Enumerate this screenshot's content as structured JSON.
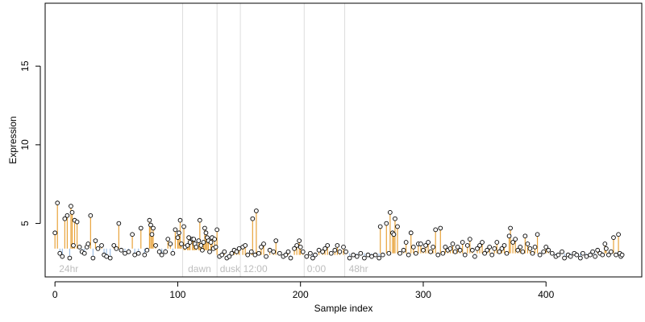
{
  "chart_data": {
    "type": "scatter",
    "title": "",
    "xlabel": "Sample index",
    "ylabel": "Expression",
    "xlim": [
      -8,
      478
    ],
    "ylim": [
      1.6,
      19.0
    ],
    "xticks": [
      0,
      100,
      200,
      300,
      400
    ],
    "yticks": [
      5,
      10,
      15
    ],
    "grid": false,
    "colors": {
      "point_fill": "#ffffff",
      "point_stroke": "#000000",
      "stem_high": "#e8a33a",
      "stem_low": "#9dbfe6",
      "separator": "#dddddd",
      "segment_label": "#bdbdbd"
    },
    "segment_boundaries": [
      104,
      132,
      151,
      203,
      236
    ],
    "segment_labels": [
      {
        "text": "24hr",
        "x": 2
      },
      {
        "text": "dawn",
        "x": 107
      },
      {
        "text": "dusk",
        "x": 133
      },
      {
        "text": "12:00",
        "x": 152
      },
      {
        "text": "0:00",
        "x": 204
      },
      {
        "text": "48hr",
        "x": 238
      }
    ],
    "baseline_segments": [
      {
        "x0": 0,
        "x1": 104,
        "value": 3.4
      },
      {
        "x0": 104,
        "x1": 132,
        "value": 3.3
      },
      {
        "x0": 132,
        "x1": 151,
        "value": 3.0
      },
      {
        "x0": 151,
        "x1": 203,
        "value": 3.0
      },
      {
        "x0": 203,
        "x1": 236,
        "value": 3.0
      },
      {
        "x0": 236,
        "x1": 462,
        "value": 3.1
      }
    ],
    "points": [
      [
        0,
        4.4
      ],
      [
        2,
        6.3
      ],
      [
        4,
        3.1
      ],
      [
        6,
        2.9
      ],
      [
        8,
        5.3
      ],
      [
        10,
        5.5
      ],
      [
        12,
        2.8
      ],
      [
        13,
        6.1
      ],
      [
        14,
        5.7
      ],
      [
        15,
        3.6
      ],
      [
        16,
        5.2
      ],
      [
        18,
        5.1
      ],
      [
        20,
        3.5
      ],
      [
        22,
        3.2
      ],
      [
        24,
        3.1
      ],
      [
        26,
        3.5
      ],
      [
        27,
        3.7
      ],
      [
        29,
        5.5
      ],
      [
        31,
        2.8
      ],
      [
        33,
        3.9
      ],
      [
        35,
        3.4
      ],
      [
        38,
        3.6
      ],
      [
        40,
        3.0
      ],
      [
        42,
        2.9
      ],
      [
        45,
        2.8
      ],
      [
        48,
        3.6
      ],
      [
        50,
        3.4
      ],
      [
        52,
        5.0
      ],
      [
        54,
        3.3
      ],
      [
        57,
        3.1
      ],
      [
        60,
        3.2
      ],
      [
        63,
        4.3
      ],
      [
        65,
        3.0
      ],
      [
        68,
        3.1
      ],
      [
        70,
        4.7
      ],
      [
        73,
        3.0
      ],
      [
        75,
        3.3
      ],
      [
        77,
        5.2
      ],
      [
        78,
        4.9
      ],
      [
        79,
        4.3
      ],
      [
        80,
        4.7
      ],
      [
        82,
        3.6
      ],
      [
        85,
        3.2
      ],
      [
        87,
        3.0
      ],
      [
        90,
        3.2
      ],
      [
        92,
        4.0
      ],
      [
        94,
        3.7
      ],
      [
        96,
        3.1
      ],
      [
        98,
        4.6
      ],
      [
        100,
        4.1
      ],
      [
        101,
        4.4
      ],
      [
        102,
        5.2
      ],
      [
        103,
        3.7
      ],
      [
        105,
        4.8
      ],
      [
        106,
        3.5
      ],
      [
        108,
        3.6
      ],
      [
        109,
        4.1
      ],
      [
        110,
        3.8
      ],
      [
        112,
        4.0
      ],
      [
        113,
        4.0
      ],
      [
        114,
        3.7
      ],
      [
        115,
        3.5
      ],
      [
        117,
        3.9
      ],
      [
        118,
        5.2
      ],
      [
        119,
        3.6
      ],
      [
        120,
        3.3
      ],
      [
        121,
        3.8
      ],
      [
        122,
        4.7
      ],
      [
        123,
        4.4
      ],
      [
        124,
        4.1
      ],
      [
        125,
        3.9
      ],
      [
        126,
        3.2
      ],
      [
        127,
        3.8
      ],
      [
        128,
        4.1
      ],
      [
        129,
        3.4
      ],
      [
        130,
        4.0
      ],
      [
        131,
        3.5
      ],
      [
        132,
        4.6
      ],
      [
        134,
        2.9
      ],
      [
        136,
        3.0
      ],
      [
        138,
        3.2
      ],
      [
        140,
        2.8
      ],
      [
        142,
        2.9
      ],
      [
        144,
        3.1
      ],
      [
        146,
        3.3
      ],
      [
        148,
        3.2
      ],
      [
        150,
        3.4
      ],
      [
        153,
        3.5
      ],
      [
        155,
        3.6
      ],
      [
        157,
        3.0
      ],
      [
        160,
        3.2
      ],
      [
        161,
        5.3
      ],
      [
        163,
        3.0
      ],
      [
        164,
        5.8
      ],
      [
        166,
        3.1
      ],
      [
        168,
        3.5
      ],
      [
        170,
        3.7
      ],
      [
        172,
        2.9
      ],
      [
        175,
        3.3
      ],
      [
        178,
        3.2
      ],
      [
        180,
        3.9
      ],
      [
        183,
        3.1
      ],
      [
        186,
        2.9
      ],
      [
        188,
        3.0
      ],
      [
        190,
        3.2
      ],
      [
        192,
        2.8
      ],
      [
        195,
        3.4
      ],
      [
        197,
        3.6
      ],
      [
        199,
        3.9
      ],
      [
        200,
        3.5
      ],
      [
        202,
        3.2
      ],
      [
        205,
        2.9
      ],
      [
        208,
        3.1
      ],
      [
        210,
        2.8
      ],
      [
        212,
        3.0
      ],
      [
        215,
        3.3
      ],
      [
        218,
        3.2
      ],
      [
        220,
        3.4
      ],
      [
        222,
        3.6
      ],
      [
        225,
        3.1
      ],
      [
        228,
        3.3
      ],
      [
        230,
        3.6
      ],
      [
        232,
        3.2
      ],
      [
        235,
        3.5
      ],
      [
        237,
        3.2
      ],
      [
        240,
        2.8
      ],
      [
        243,
        3.0
      ],
      [
        246,
        2.9
      ],
      [
        249,
        3.1
      ],
      [
        252,
        2.8
      ],
      [
        255,
        3.0
      ],
      [
        258,
        2.9
      ],
      [
        261,
        3.0
      ],
      [
        264,
        2.8
      ],
      [
        265,
        4.8
      ],
      [
        267,
        3.0
      ],
      [
        270,
        5.0
      ],
      [
        272,
        3.1
      ],
      [
        273,
        5.7
      ],
      [
        275,
        4.4
      ],
      [
        276,
        4.3
      ],
      [
        277,
        5.3
      ],
      [
        279,
        4.8
      ],
      [
        281,
        3.1
      ],
      [
        284,
        3.3
      ],
      [
        286,
        3.8
      ],
      [
        288,
        3.0
      ],
      [
        290,
        4.4
      ],
      [
        292,
        3.5
      ],
      [
        294,
        3.1
      ],
      [
        296,
        3.7
      ],
      [
        298,
        3.7
      ],
      [
        300,
        3.3
      ],
      [
        302,
        3.6
      ],
      [
        304,
        3.8
      ],
      [
        306,
        3.2
      ],
      [
        308,
        3.5
      ],
      [
        310,
        4.6
      ],
      [
        312,
        3.0
      ],
      [
        314,
        4.7
      ],
      [
        316,
        3.1
      ],
      [
        318,
        3.5
      ],
      [
        320,
        3.3
      ],
      [
        322,
        3.4
      ],
      [
        324,
        3.7
      ],
      [
        326,
        3.2
      ],
      [
        328,
        3.5
      ],
      [
        330,
        3.3
      ],
      [
        332,
        3.8
      ],
      [
        334,
        3.0
      ],
      [
        336,
        3.6
      ],
      [
        338,
        4.0
      ],
      [
        340,
        3.3
      ],
      [
        342,
        2.9
      ],
      [
        344,
        3.4
      ],
      [
        346,
        3.6
      ],
      [
        348,
        3.8
      ],
      [
        350,
        3.1
      ],
      [
        352,
        3.3
      ],
      [
        354,
        3.5
      ],
      [
        356,
        3.0
      ],
      [
        358,
        3.4
      ],
      [
        360,
        3.8
      ],
      [
        362,
        3.2
      ],
      [
        364,
        3.4
      ],
      [
        366,
        3.6
      ],
      [
        368,
        3.1
      ],
      [
        370,
        4.2
      ],
      [
        371,
        4.7
      ],
      [
        373,
        3.8
      ],
      [
        375,
        4.0
      ],
      [
        377,
        3.3
      ],
      [
        379,
        3.5
      ],
      [
        381,
        3.2
      ],
      [
        383,
        4.2
      ],
      [
        385,
        3.7
      ],
      [
        387,
        3.4
      ],
      [
        389,
        3.1
      ],
      [
        391,
        3.5
      ],
      [
        393,
        4.3
      ],
      [
        395,
        3.0
      ],
      [
        398,
        3.2
      ],
      [
        400,
        3.5
      ],
      [
        402,
        3.3
      ],
      [
        405,
        3.1
      ],
      [
        408,
        2.9
      ],
      [
        410,
        3.0
      ],
      [
        413,
        3.2
      ],
      [
        415,
        2.8
      ],
      [
        418,
        3.0
      ],
      [
        420,
        2.9
      ],
      [
        423,
        3.1
      ],
      [
        425,
        3.0
      ],
      [
        428,
        2.8
      ],
      [
        430,
        3.1
      ],
      [
        433,
        2.9
      ],
      [
        436,
        3.0
      ],
      [
        438,
        3.2
      ],
      [
        440,
        2.9
      ],
      [
        442,
        3.3
      ],
      [
        444,
        3.1
      ],
      [
        446,
        3.0
      ],
      [
        448,
        3.7
      ],
      [
        449,
        3.4
      ],
      [
        451,
        3.0
      ],
      [
        453,
        3.2
      ],
      [
        455,
        4.1
      ],
      [
        457,
        3.0
      ],
      [
        459,
        4.3
      ],
      [
        460,
        3.1
      ],
      [
        461,
        2.9
      ],
      [
        462,
        3.0
      ]
    ]
  }
}
